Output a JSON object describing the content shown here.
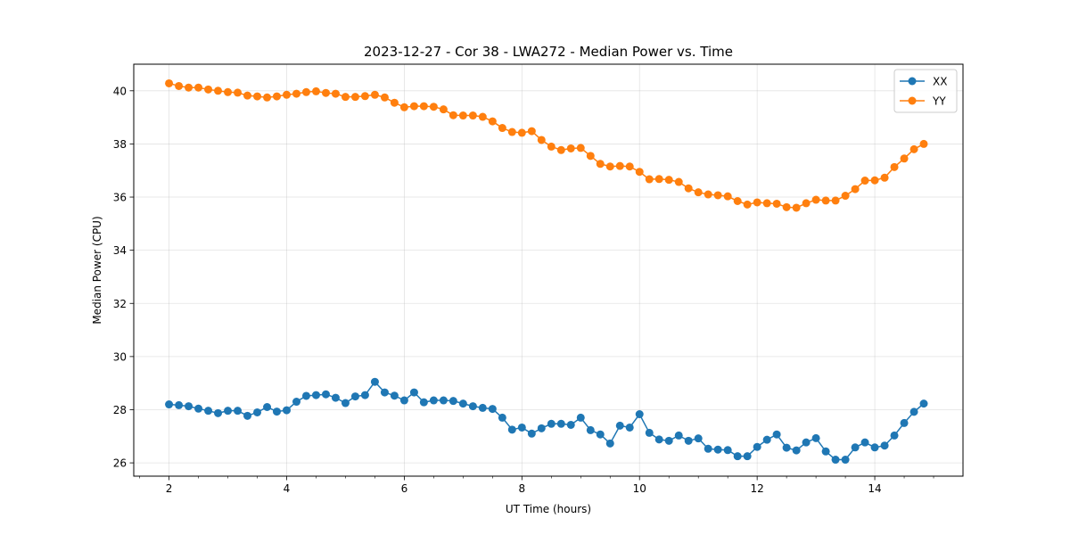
{
  "chart_data": {
    "type": "line",
    "title": "2023-12-27 - Cor 38 - LWA272 - Median Power vs. Time",
    "xlabel": "UT Time (hours)",
    "ylabel": "Median Power (CPU)",
    "xlim": [
      1.4,
      15.5
    ],
    "ylim": [
      25.5,
      41.0
    ],
    "xticks": [
      2,
      4,
      6,
      8,
      10,
      12,
      14
    ],
    "yticks": [
      26,
      28,
      30,
      32,
      34,
      36,
      38,
      40
    ],
    "grid": true,
    "legend": "top-right",
    "x": [
      2.0,
      2.167,
      2.333,
      2.5,
      2.667,
      2.833,
      3.0,
      3.167,
      3.333,
      3.5,
      3.667,
      3.833,
      4.0,
      4.167,
      4.333,
      4.5,
      4.667,
      4.833,
      5.0,
      5.167,
      5.333,
      5.5,
      5.667,
      5.833,
      6.0,
      6.167,
      6.333,
      6.5,
      6.667,
      6.833,
      7.0,
      7.167,
      7.333,
      7.5,
      7.667,
      7.833,
      8.0,
      8.167,
      8.333,
      8.5,
      8.667,
      8.833,
      9.0,
      9.167,
      9.333,
      9.5,
      9.667,
      9.833,
      10.0,
      10.167,
      10.333,
      10.5,
      10.667,
      10.833,
      11.0,
      11.167,
      11.333,
      11.5,
      11.667,
      11.833,
      12.0,
      12.167,
      12.333,
      12.5,
      12.667,
      12.833,
      13.0,
      13.167,
      13.333,
      13.5,
      13.667,
      13.833,
      14.0,
      14.167,
      14.333,
      14.5,
      14.667,
      14.833
    ],
    "series": [
      {
        "name": "XX",
        "color": "#1f77b4",
        "values": [
          28.2,
          28.17,
          28.13,
          28.04,
          27.96,
          27.87,
          27.96,
          27.96,
          27.77,
          27.9,
          28.1,
          27.93,
          27.98,
          28.3,
          28.52,
          28.55,
          28.58,
          28.45,
          28.25,
          28.5,
          28.55,
          29.05,
          28.65,
          28.53,
          28.35,
          28.65,
          28.28,
          28.35,
          28.35,
          28.33,
          28.23,
          28.13,
          28.07,
          28.03,
          27.7,
          27.25,
          27.33,
          27.1,
          27.3,
          27.47,
          27.47,
          27.43,
          27.7,
          27.23,
          27.07,
          26.73,
          27.4,
          27.33,
          27.83,
          27.13,
          26.88,
          26.83,
          27.03,
          26.83,
          26.92,
          26.53,
          26.5,
          26.48,
          26.25,
          26.25,
          26.6,
          26.87,
          27.07,
          26.57,
          26.47,
          26.77,
          26.93,
          26.43,
          26.12,
          26.12,
          26.58,
          26.77,
          26.58,
          26.65,
          27.03,
          27.5,
          27.92,
          28.23
        ]
      },
      {
        "name": "YY",
        "color": "#ff7f0e",
        "values": [
          40.28,
          40.18,
          40.12,
          40.12,
          40.05,
          40.0,
          39.95,
          39.93,
          39.82,
          39.79,
          39.75,
          39.79,
          39.85,
          39.89,
          39.95,
          39.98,
          39.92,
          39.89,
          39.77,
          39.77,
          39.8,
          39.85,
          39.75,
          39.55,
          39.38,
          39.42,
          39.42,
          39.4,
          39.3,
          39.08,
          39.07,
          39.07,
          39.02,
          38.85,
          38.6,
          38.45,
          38.42,
          38.48,
          38.15,
          37.9,
          37.77,
          37.83,
          37.85,
          37.55,
          37.25,
          37.15,
          37.17,
          37.15,
          36.95,
          36.67,
          36.68,
          36.65,
          36.57,
          36.33,
          36.18,
          36.1,
          36.07,
          36.03,
          35.85,
          35.72,
          35.8,
          35.77,
          35.75,
          35.62,
          35.6,
          35.77,
          35.9,
          35.87,
          35.87,
          36.05,
          36.3,
          36.62,
          36.63,
          36.73,
          37.13,
          37.45,
          37.8,
          38.0
        ]
      }
    ]
  }
}
